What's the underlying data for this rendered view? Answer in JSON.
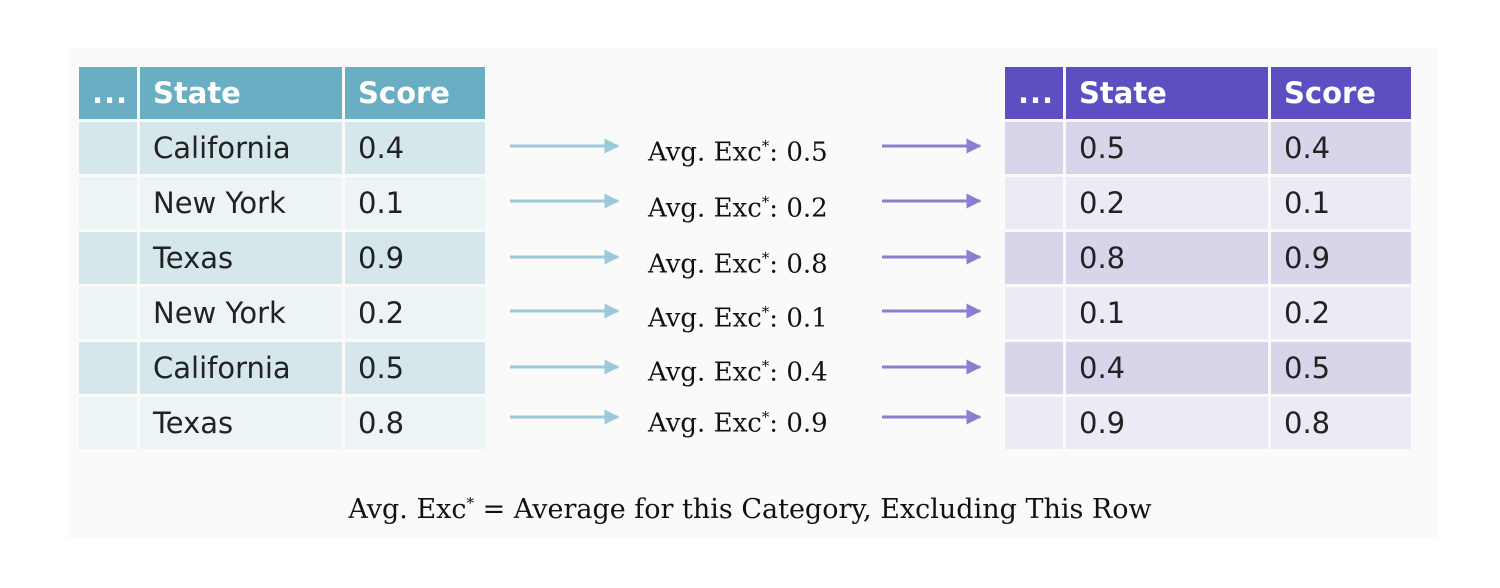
{
  "left_table": {
    "headers": [
      "...",
      "State",
      "Score"
    ],
    "rows": [
      {
        "state": "California",
        "score": "0.4"
      },
      {
        "state": "New York",
        "score": "0.1"
      },
      {
        "state": "Texas",
        "score": "0.9"
      },
      {
        "state": "New York",
        "score": "0.2"
      },
      {
        "state": "California",
        "score": "0.5"
      },
      {
        "state": "Texas",
        "score": "0.8"
      }
    ],
    "header_color": "#6aaec3"
  },
  "middle": {
    "prefix": "Avg. Exc",
    "star": "*",
    "sep": ": ",
    "values": [
      "0.5",
      "0.2",
      "0.8",
      "0.1",
      "0.4",
      "0.9"
    ],
    "left_arrow_color": "#9cc9d9",
    "right_arrow_color": "#8a80cf"
  },
  "right_table": {
    "headers": [
      "...",
      "State",
      "Score"
    ],
    "rows": [
      {
        "state": "0.5",
        "score": "0.4"
      },
      {
        "state": "0.2",
        "score": "0.1"
      },
      {
        "state": "0.8",
        "score": "0.9"
      },
      {
        "state": "0.1",
        "score": "0.2"
      },
      {
        "state": "0.4",
        "score": "0.5"
      },
      {
        "state": "0.9",
        "score": "0.8"
      }
    ],
    "header_color": "#5d4fc1"
  },
  "footnote": {
    "term": "Avg. Exc",
    "star": "*",
    "definition": " = Average for this Category, Excluding This Row"
  }
}
